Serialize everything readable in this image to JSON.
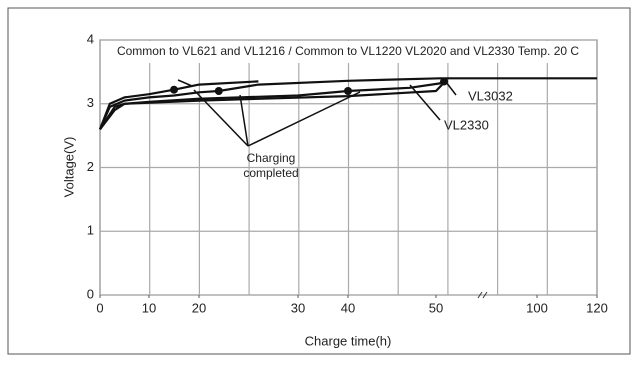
{
  "chart_data": {
    "type": "line",
    "title": "Common to VL621 and VL1216 / Common to VL1220 VL2020 and VL2330 Temp. 20 C",
    "x_label": "Charge time(h)",
    "y_label": "Voltage(V)",
    "xlim": [
      0,
      120
    ],
    "xticks": [
      0,
      10,
      20,
      30,
      40,
      50,
      100,
      120
    ],
    "ylim": [
      0,
      4
    ],
    "yticks": [
      0,
      1,
      2,
      3,
      4
    ],
    "grid": true,
    "legend": false,
    "color": "#111111",
    "series": [
      {
        "x": [
          0,
          2,
          5,
          10,
          15,
          20,
          26
        ],
        "values": [
          2.6,
          3.0,
          3.1,
          3.15,
          3.22,
          3.3,
          3.35
        ]
      },
      {
        "x": [
          0,
          2,
          5,
          10,
          15,
          20,
          22,
          26,
          40,
          52,
          120
        ],
        "values": [
          2.6,
          2.95,
          3.05,
          3.1,
          3.13,
          3.18,
          3.2,
          3.3,
          3.36,
          3.4,
          3.4
        ]
      },
      {
        "x": [
          0,
          3,
          5,
          10,
          20,
          30,
          40,
          47,
          52,
          54
        ],
        "values": [
          2.6,
          2.9,
          3.0,
          3.03,
          3.08,
          3.13,
          3.2,
          3.25,
          3.32,
          3.4
        ]
      },
      {
        "x": [
          0,
          3,
          5,
          20,
          40,
          50,
          53,
          55
        ],
        "values": [
          2.6,
          2.95,
          3.0,
          3.05,
          3.12,
          3.2,
          3.3,
          3.4
        ]
      }
    ],
    "markers": {
      "x": [
        15,
        22,
        40,
        54
      ],
      "values": [
        3.22,
        3.2,
        3.2,
        3.35
      ]
    },
    "annotations": {
      "completed": [
        "Charging",
        "completed"
      ],
      "vl3032": "VL3032",
      "vl2330": "VL2330"
    }
  }
}
